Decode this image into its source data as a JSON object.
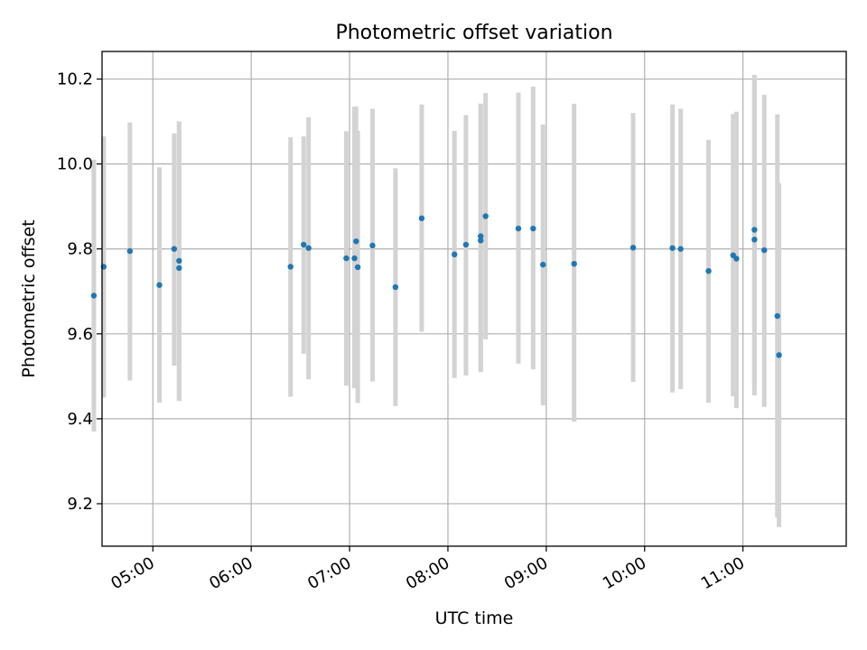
{
  "chart_data": {
    "type": "scatter",
    "title": "Photometric offset variation",
    "xlabel": "UTC time",
    "ylabel": "Photometric offset",
    "x_ticks": [
      "05:00",
      "06:00",
      "07:00",
      "08:00",
      "09:00",
      "10:00",
      "11:00"
    ],
    "y_ticks": [
      "9.2",
      "9.4",
      "9.6",
      "9.8",
      "10.0",
      "10.2"
    ],
    "xlim": [
      "04:29",
      "12:03"
    ],
    "ylim": [
      9.1,
      10.265
    ],
    "grid": true,
    "colors": {
      "points": "#1f77b4",
      "error_bars": "#d3d3d3",
      "grid": "#b0b0b0"
    },
    "series": [
      {
        "points": [
          {
            "x": "04:24",
            "y": 9.69,
            "err": [
              9.37,
              10.01
            ]
          },
          {
            "x": "04:30",
            "y": 9.758,
            "err": [
              9.45,
              10.065
            ]
          },
          {
            "x": "04:46",
            "y": 9.795,
            "err": [
              9.49,
              10.098
            ]
          },
          {
            "x": "05:04",
            "y": 9.715,
            "err": [
              9.438,
              9.992
            ]
          },
          {
            "x": "05:13",
            "y": 9.8,
            "err": [
              9.525,
              10.072
            ]
          },
          {
            "x": "05:16",
            "y": 9.772,
            "err": [
              9.442,
              10.1
            ]
          },
          {
            "x": "05:16",
            "y": 9.755,
            "err": [
              9.442,
              10.1
            ]
          },
          {
            "x": "06:24",
            "y": 9.758,
            "err": [
              9.452,
              10.063
            ]
          },
          {
            "x": "06:32",
            "y": 9.81,
            "err": [
              9.553,
              10.065
            ]
          },
          {
            "x": "06:35",
            "y": 9.802,
            "err": [
              9.493,
              10.11
            ]
          },
          {
            "x": "06:58",
            "y": 9.778,
            "err": [
              9.478,
              10.077
            ]
          },
          {
            "x": "07:03",
            "y": 9.778,
            "err": [
              9.472,
              10.135
            ]
          },
          {
            "x": "07:04",
            "y": 9.818,
            "err": [
              9.472,
              10.135
            ]
          },
          {
            "x": "07:05",
            "y": 9.757,
            "err": [
              9.437,
              10.078
            ]
          },
          {
            "x": "07:14",
            "y": 9.808,
            "err": [
              9.488,
              10.13
            ]
          },
          {
            "x": "07:28",
            "y": 9.71,
            "err": [
              9.43,
              9.99
            ]
          },
          {
            "x": "07:44",
            "y": 9.872,
            "err": [
              9.605,
              10.14
            ]
          },
          {
            "x": "08:04",
            "y": 9.787,
            "err": [
              9.496,
              10.078
            ]
          },
          {
            "x": "08:11",
            "y": 9.81,
            "err": [
              9.502,
              10.115
            ]
          },
          {
            "x": "08:20",
            "y": 9.83,
            "err": [
              9.51,
              10.142
            ]
          },
          {
            "x": "08:20",
            "y": 9.82,
            "err": [
              9.51,
              10.142
            ]
          },
          {
            "x": "08:23",
            "y": 9.877,
            "err": [
              9.587,
              10.167
            ]
          },
          {
            "x": "08:43",
            "y": 9.848,
            "err": [
              9.53,
              10.168
            ]
          },
          {
            "x": "08:52",
            "y": 9.848,
            "err": [
              9.517,
              10.182
            ]
          },
          {
            "x": "08:58",
            "y": 9.763,
            "err": [
              9.432,
              10.093
            ]
          },
          {
            "x": "09:17",
            "y": 9.765,
            "err": [
              9.393,
              10.142
            ]
          },
          {
            "x": "09:53",
            "y": 9.803,
            "err": [
              9.487,
              10.12
            ]
          },
          {
            "x": "10:17",
            "y": 9.802,
            "err": [
              9.462,
              10.14
            ]
          },
          {
            "x": "10:22",
            "y": 9.8,
            "err": [
              9.47,
              10.13
            ]
          },
          {
            "x": "10:39",
            "y": 9.748,
            "err": [
              9.438,
              10.057
            ]
          },
          {
            "x": "10:54",
            "y": 9.785,
            "err": [
              9.453,
              10.118
            ]
          },
          {
            "x": "10:56",
            "y": 9.777,
            "err": [
              9.425,
              10.123
            ]
          },
          {
            "x": "11:07",
            "y": 9.845,
            "err": [
              9.478,
              10.21
            ]
          },
          {
            "x": "11:07",
            "y": 9.822,
            "err": [
              9.455,
              10.195
            ]
          },
          {
            "x": "11:13",
            "y": 9.797,
            "err": [
              9.428,
              10.163
            ]
          },
          {
            "x": "11:21",
            "y": 9.642,
            "err": [
              9.168,
              10.117
            ]
          },
          {
            "x": "11:22",
            "y": 9.55,
            "err": [
              9.145,
              9.955
            ]
          }
        ]
      }
    ]
  }
}
